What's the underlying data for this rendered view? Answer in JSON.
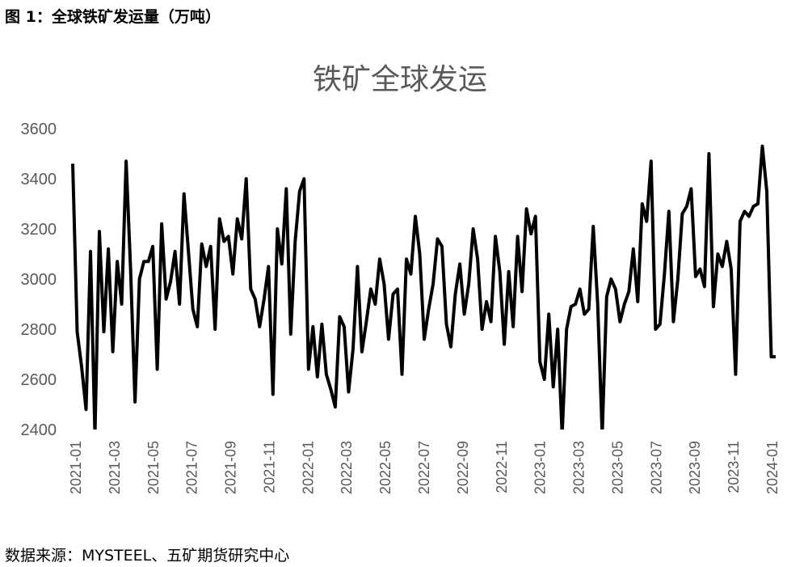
{
  "figure": {
    "caption": "图 1：全球铁矿发运量（万吨）",
    "source": "数据来源：MYSTEEL、五矿期货研究中心"
  },
  "colors": {
    "line": "#000000",
    "axis_text": "#595959",
    "background": "#ffffff"
  },
  "chart_data": {
    "type": "line",
    "title": "铁矿全球发运",
    "xlabel": "",
    "ylabel": "",
    "ylim": [
      2400,
      3600
    ],
    "y_ticks": [
      "2400",
      "2600",
      "2800",
      "3000",
      "3200",
      "3400",
      "3600"
    ],
    "x_ticks": [
      "2021-01",
      "2021-03",
      "2021-05",
      "2021-07",
      "2021-09",
      "2021-11",
      "2022-01",
      "2022-03",
      "2022-05",
      "2022-07",
      "2022-09",
      "2022-11",
      "2023-01",
      "2023-03",
      "2023-05",
      "2023-07",
      "2023-09",
      "2023-11",
      "2024-01"
    ],
    "grid": false,
    "legend": "none",
    "series": [
      {
        "frequency": "weekly",
        "values": [
          3460,
          2790,
          2650,
          2480,
          3110,
          2380,
          3190,
          2790,
          3120,
          2710,
          3070,
          2900,
          3470,
          3040,
          2510,
          3000,
          3070,
          3070,
          3130,
          2640,
          3220,
          2920,
          2990,
          3110,
          2900,
          3340,
          3110,
          2880,
          2810,
          3140,
          3050,
          3130,
          2800,
          3240,
          3150,
          3170,
          3020,
          3240,
          3160,
          3400,
          2960,
          2920,
          2810,
          2920,
          3050,
          2540,
          3200,
          3060,
          3360,
          2780,
          3150,
          3350,
          3400,
          2640,
          2810,
          2610,
          2820,
          2620,
          2560,
          2490,
          2850,
          2810,
          2550,
          2720,
          3050,
          2710,
          2830,
          2960,
          2900,
          3080,
          2980,
          2760,
          2940,
          2960,
          2620,
          3080,
          3020,
          3250,
          3100,
          2760,
          2880,
          2980,
          3160,
          3130,
          2820,
          2730,
          2940,
          3060,
          2860,
          2980,
          3200,
          3080,
          2800,
          2910,
          2830,
          3170,
          3030,
          2740,
          3030,
          2810,
          3170,
          2950,
          3280,
          3180,
          3250,
          2670,
          2600,
          2860,
          2570,
          2800,
          2380,
          2800,
          2890,
          2900,
          2960,
          2860,
          2880,
          3210,
          2900,
          2380,
          2930,
          3000,
          2960,
          2830,
          2900,
          2950,
          3120,
          2910,
          3300,
          3230,
          3470,
          2800,
          2820,
          3020,
          3270,
          2830,
          3000,
          3260,
          3290,
          3360,
          3010,
          3040,
          2970,
          3500,
          2890,
          3100,
          3050,
          3150,
          3040,
          2620,
          3230,
          3270,
          3250,
          3290,
          3300,
          3530,
          3350,
          2690,
          2690
        ]
      }
    ]
  }
}
